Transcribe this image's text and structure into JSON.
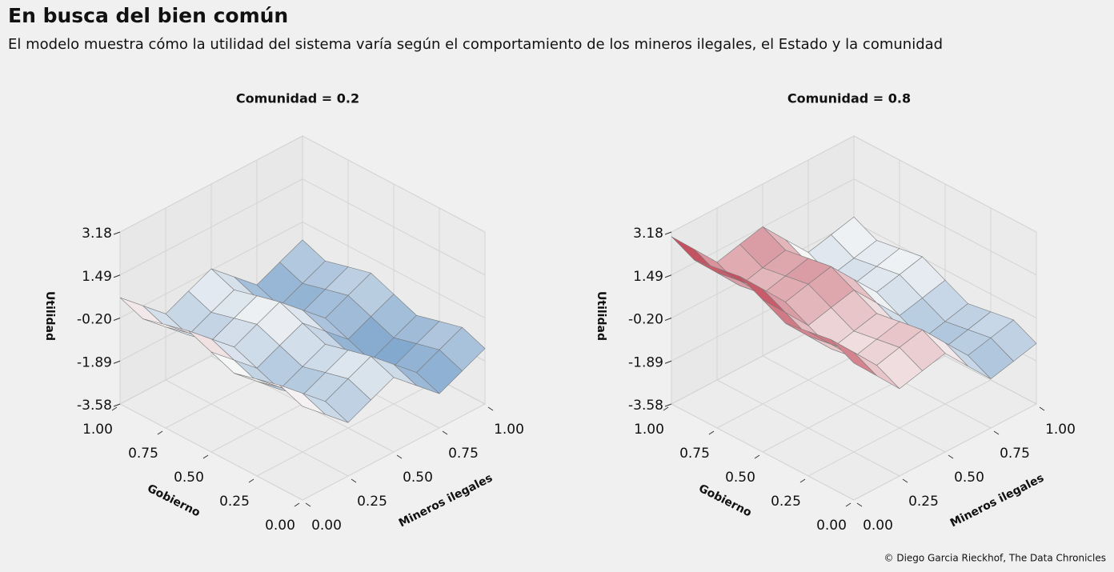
{
  "header": {
    "title": "En busca del bien común",
    "subtitle": "El modelo muestra cómo la utilidad del sistema varía según el comportamiento de los mineros ilegales, el Estado y la comunidad"
  },
  "footer": {
    "credit": "© Diego Garcia Rieckhof, The Data Chronicles"
  },
  "chart_data": [
    {
      "type": "surface",
      "title": "Comunidad = 0.2",
      "x_label": "Mineros ilegales",
      "y_label": "Gobierno",
      "z_label": "Utilidad",
      "x": [
        0,
        0.125,
        0.25,
        0.375,
        0.5,
        0.625,
        0.75,
        0.875,
        1
      ],
      "y": [
        0,
        0.125,
        0.25,
        0.375,
        0.5,
        0.625,
        0.75,
        0.875,
        1
      ],
      "z": [
        [
          0.1,
          -0.69,
          -1.48,
          -1.06,
          -0.65,
          -1.44,
          -2.23,
          -1.81,
          -1.4
        ],
        [
          0.46,
          -0.33,
          -1.12,
          -0.7,
          -0.29,
          -1.08,
          -1.87,
          -1.45,
          -1.04
        ],
        [
          0.23,
          -0.56,
          -1.35,
          -0.93,
          -0.52,
          -1.31,
          -2.1,
          -1.68,
          -1.27
        ],
        [
          -0.01,
          -0.8,
          -1.59,
          -1.17,
          -0.76,
          -1.55,
          -2.34,
          -1.92,
          -1.51
        ],
        [
          0.35,
          -0.44,
          -1.23,
          -0.81,
          -0.4,
          -1.19,
          -1.98,
          -1.56,
          -1.15
        ],
        [
          0.71,
          -0.08,
          -0.87,
          -0.45,
          -0.04,
          -0.83,
          -1.62,
          -1.2,
          -0.79
        ],
        [
          0.48,
          -0.31,
          -1.1,
          -0.68,
          -0.27,
          -1.06,
          -1.85,
          -1.43,
          -1.02
        ],
        [
          0.24,
          -0.55,
          -1.34,
          -0.92,
          -0.51,
          -1.3,
          -2.09,
          -1.67,
          -1.26
        ],
        [
          0.6,
          -0.19,
          -0.98,
          -0.56,
          -0.15,
          -0.94,
          -1.73,
          -1.31,
          -0.9
        ]
      ],
      "xlim": [
        0,
        1
      ],
      "ylim": [
        0,
        1
      ],
      "zlim": [
        -3.58,
        3.18
      ],
      "xticks": [
        {
          "value": 0,
          "label": "0.00"
        },
        {
          "value": 0.25,
          "label": "0.25"
        },
        {
          "value": 0.5,
          "label": "0.50"
        },
        {
          "value": 0.75,
          "label": "0.75"
        },
        {
          "value": 1,
          "label": "1.00"
        }
      ],
      "yticks": [
        {
          "value": 0,
          "label": "0.00"
        },
        {
          "value": 0.25,
          "label": "0.25"
        },
        {
          "value": 0.5,
          "label": "0.50"
        },
        {
          "value": 0.75,
          "label": "0.75"
        },
        {
          "value": 1,
          "label": "1.00"
        }
      ],
      "zticks": [
        -3.58,
        -1.89,
        {
          "value": -0.2,
          "label": "-0.20"
        },
        1.49,
        3.18
      ],
      "colormap": [
        "#2166ac",
        "#f7f7f7",
        "#b2182b"
      ],
      "grid": true
    },
    {
      "type": "surface",
      "title": "Comunidad = 0.8",
      "x_label": "Mineros ilegales",
      "y_label": "Gobierno",
      "z_label": "Utilidad",
      "x": [
        0,
        0.125,
        0.25,
        0.375,
        0.5,
        0.625,
        0.75,
        0.875,
        1
      ],
      "y": [
        0,
        0.125,
        0.25,
        0.375,
        0.5,
        0.625,
        0.75,
        0.875,
        1
      ],
      "z": [
        [
          1.8,
          0.83,
          -0.15,
          0.08,
          0.3,
          -0.68,
          -1.65,
          -1.43,
          -1.2
        ],
        [
          2.25,
          1.28,
          0.3,
          0.53,
          0.75,
          -0.23,
          -1.2,
          -0.98,
          -0.75
        ],
        [
          2.1,
          1.13,
          0.15,
          0.38,
          0.6,
          -0.38,
          -1.35,
          -1.13,
          -0.9
        ],
        [
          1.95,
          0.98,
          0.0,
          0.23,
          0.45,
          -0.53,
          -1.5,
          -1.28,
          -1.05
        ],
        [
          2.4,
          1.43,
          0.45,
          0.68,
          0.9,
          -0.08,
          -1.05,
          -0.83,
          -0.6
        ],
        [
          2.85,
          1.88,
          0.9,
          1.13,
          1.35,
          0.37,
          -0.6,
          -0.38,
          -0.15
        ],
        [
          2.7,
          1.73,
          0.75,
          0.98,
          1.2,
          0.22,
          -0.75,
          -0.53,
          -0.3
        ],
        [
          2.55,
          1.58,
          0.6,
          0.83,
          1.05,
          0.07,
          -0.9,
          -0.68,
          -0.45
        ],
        [
          3.0,
          2.03,
          1.05,
          1.28,
          1.5,
          0.52,
          -0.45,
          -0.23,
          0.0
        ]
      ],
      "xlim": [
        0,
        1
      ],
      "ylim": [
        0,
        1
      ],
      "zlim": [
        -3.58,
        3.18
      ],
      "xticks": [
        {
          "value": 0,
          "label": "0.00"
        },
        {
          "value": 0.25,
          "label": "0.25"
        },
        {
          "value": 0.5,
          "label": "0.50"
        },
        {
          "value": 0.75,
          "label": "0.75"
        },
        {
          "value": 1,
          "label": "1.00"
        }
      ],
      "yticks": [
        {
          "value": 0,
          "label": "0.00"
        },
        {
          "value": 0.25,
          "label": "0.25"
        },
        {
          "value": 0.5,
          "label": "0.50"
        },
        {
          "value": 0.75,
          "label": "0.75"
        },
        {
          "value": 1,
          "label": "1.00"
        }
      ],
      "zticks": [
        -3.58,
        -1.89,
        {
          "value": -0.2,
          "label": "-0.20"
        },
        1.49,
        3.18
      ],
      "colormap": [
        "#2166ac",
        "#f7f7f7",
        "#b2182b"
      ],
      "grid": true
    }
  ]
}
